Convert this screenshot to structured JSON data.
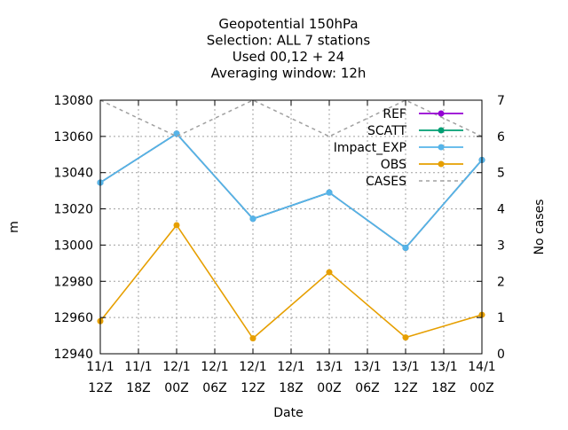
{
  "chart_data": {
    "type": "line",
    "title_lines": [
      "Geopotential 150hPa",
      "Selection: ALL       7 stations",
      "Used  00,12  + 24",
      "Averaging window: 12h"
    ],
    "xlabel": "Date",
    "ylabel": "m",
    "y2label": "No cases",
    "x_ticks": [
      [
        "11/1",
        "12Z"
      ],
      [
        "11/1",
        "18Z"
      ],
      [
        "12/1",
        "00Z"
      ],
      [
        "12/1",
        "06Z"
      ],
      [
        "12/1",
        "12Z"
      ],
      [
        "12/1",
        "18Z"
      ],
      [
        "13/1",
        "00Z"
      ],
      [
        "13/1",
        "06Z"
      ],
      [
        "13/1",
        "12Z"
      ],
      [
        "13/1",
        "18Z"
      ],
      [
        "14/1",
        "00Z"
      ]
    ],
    "ylim": [
      12940,
      13080
    ],
    "y_ticks": [
      12940,
      12960,
      12980,
      13000,
      13020,
      13040,
      13060,
      13080
    ],
    "y2lim": [
      0,
      7
    ],
    "y2_ticks": [
      0,
      1,
      2,
      3,
      4,
      5,
      6,
      7
    ],
    "grid": true,
    "legend_position": "top-right",
    "x": [
      "11/1 12Z",
      "12/1 00Z",
      "12/1 12Z",
      "13/1 00Z",
      "13/1 12Z",
      "14/1 00Z"
    ],
    "series": [
      {
        "name": "REF",
        "axis": "y",
        "color": "#9400d3",
        "style": "solid-point",
        "values": [
          13034.5,
          13061.5,
          13014.5,
          13029,
          12998.5,
          13047
        ]
      },
      {
        "name": "SCATT",
        "axis": "y",
        "color": "#009e73",
        "style": "solid-point",
        "values": [
          13034.5,
          13061.5,
          13014.5,
          13029,
          12998.5,
          13047
        ]
      },
      {
        "name": "Impact_EXP",
        "axis": "y",
        "color": "#56b4e9",
        "style": "solid-point",
        "values": [
          13034.5,
          13061.5,
          13014.5,
          13029,
          12998.5,
          13047
        ]
      },
      {
        "name": "OBS",
        "axis": "y",
        "color": "#e69f00",
        "style": "solid-point",
        "values": [
          12958,
          13011,
          12948.5,
          12985,
          12949,
          12961.5
        ]
      },
      {
        "name": "CASES",
        "axis": "y2",
        "color": "#a0a0a0",
        "style": "dashed",
        "values": [
          7,
          6,
          7,
          6,
          7,
          6
        ]
      }
    ]
  }
}
